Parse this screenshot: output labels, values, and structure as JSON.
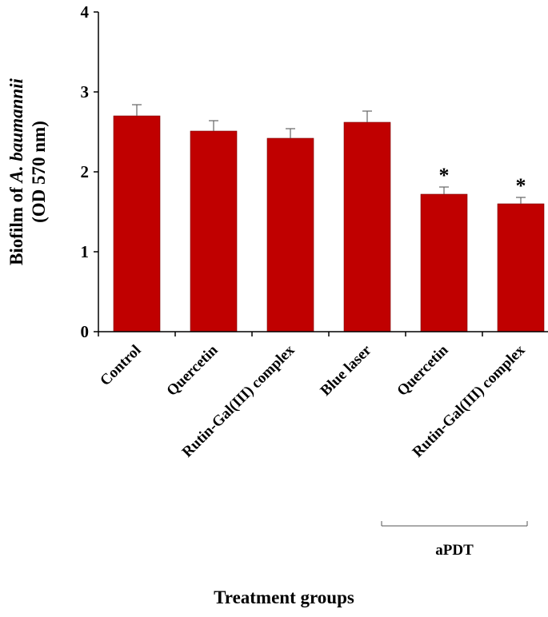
{
  "chart_data": {
    "type": "bar",
    "categories": [
      "Control",
      "Quercetin",
      "Rutin-Gal(III) complex",
      "Blue laser",
      "Quercetin",
      "Rutin-Gal(III) complex"
    ],
    "values": [
      2.7,
      2.51,
      2.42,
      2.62,
      1.72,
      1.6
    ],
    "errors": [
      0.14,
      0.13,
      0.12,
      0.14,
      0.09,
      0.08
    ],
    "significance": [
      "",
      "",
      "",
      "",
      "*",
      "*"
    ],
    "ylim": [
      0,
      4
    ],
    "yticks": [
      "0",
      "1",
      "2",
      "3",
      "4"
    ],
    "ylabel_line1_prefix": "Biofilm of ",
    "ylabel_line1_italic": "A. baumannii",
    "ylabel_line2": "(OD 570 nm)",
    "xlabel": "Treatment groups",
    "group_bracket": {
      "label": "aPDT",
      "from_index": 4,
      "to_index": 5
    },
    "bar_color": "#c00000",
    "grid": false
  }
}
